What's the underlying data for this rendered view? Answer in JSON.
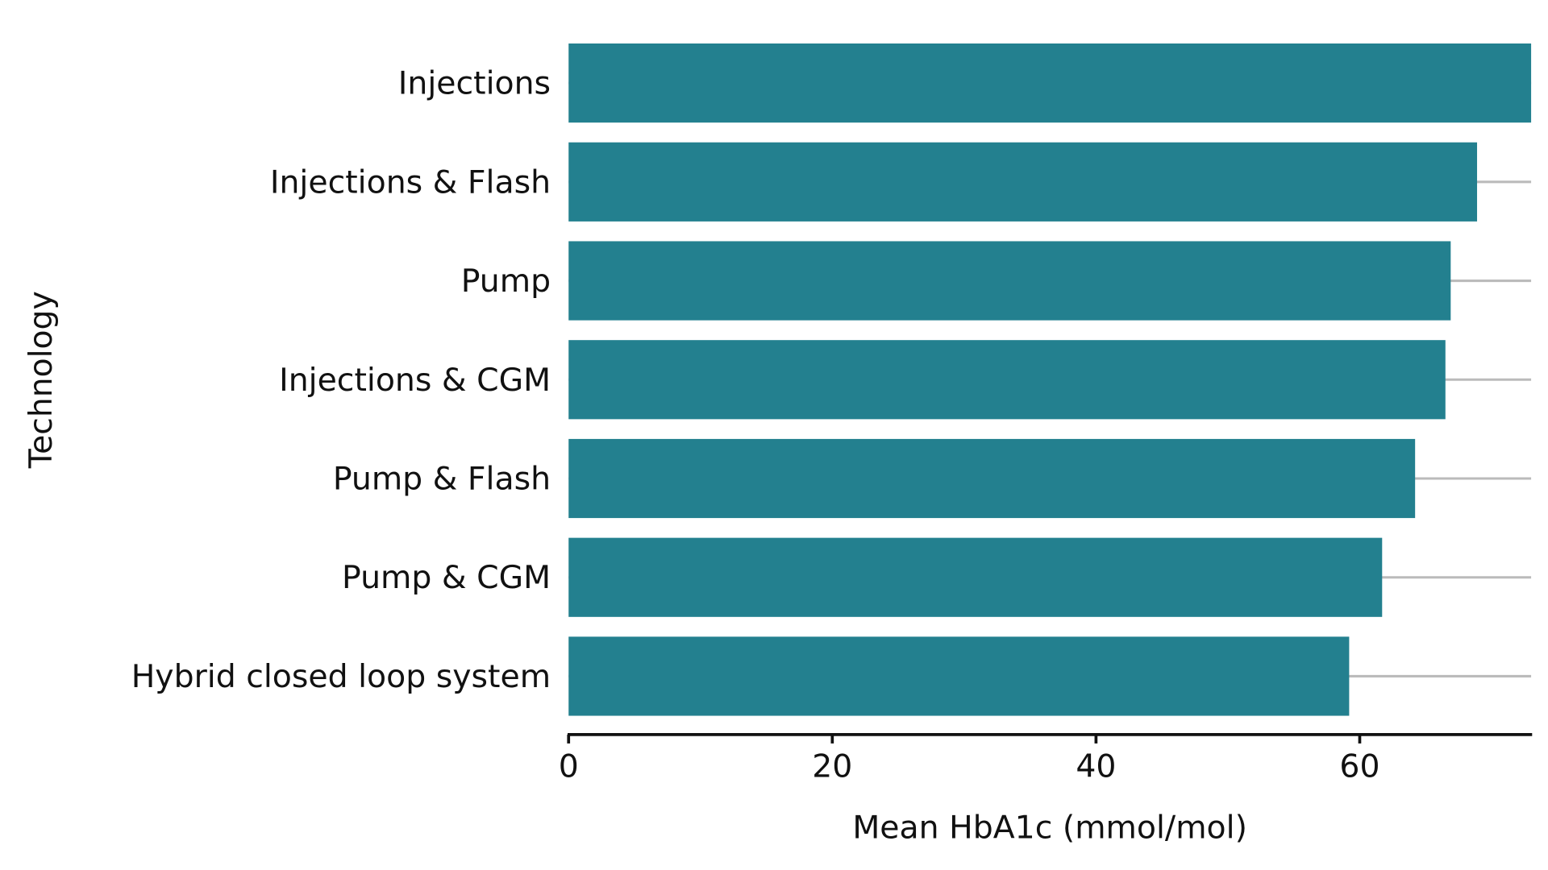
{
  "chart_data": {
    "type": "bar",
    "orientation": "horizontal",
    "title": "",
    "xlabel": "Mean HbA1c (mmol/mol)",
    "ylabel": "Technology",
    "categories": [
      "Injections",
      "Injections & Flash",
      "Pump",
      "Injections & CGM",
      "Pump & Flash",
      "Pump & CGM",
      "Hybrid closed loop system"
    ],
    "values": [
      73.0,
      68.9,
      66.9,
      66.5,
      64.2,
      61.7,
      59.2
    ],
    "xlim": [
      0,
      73
    ],
    "xticks": [
      0,
      20,
      40,
      60
    ],
    "bar_color": "#23808f",
    "grid": "horizontal lines at categories",
    "legend": "none"
  }
}
